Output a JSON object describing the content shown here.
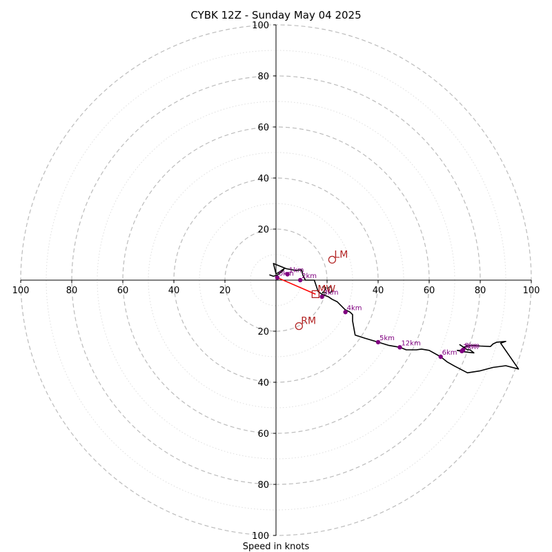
{
  "chart_data": {
    "type": "hodograph",
    "title": "CYBK 12Z - Sunday May 04 2025",
    "xlabel": "Speed in knots",
    "range": [
      -100,
      100
    ],
    "ring_labels": [
      "20",
      "40",
      "60",
      "80",
      "100"
    ],
    "tick_values": [
      20,
      40,
      60,
      80,
      100
    ],
    "colors": {
      "trace": "#000000",
      "height_markers": "#800080",
      "storm_motion": "#b22222",
      "shear_vector": "#ff0000",
      "rings_major": "#bbbbbb",
      "rings_minor": "#dddddd"
    },
    "trace": [
      [
        -2.6,
        2.1
      ],
      [
        -1.0,
        1.5
      ],
      [
        0.5,
        2.0
      ],
      [
        2.5,
        3.5
      ],
      [
        3.2,
        4.5
      ],
      [
        1.0,
        3.0
      ],
      [
        0.0,
        2.5
      ],
      [
        -1.0,
        6.5
      ],
      [
        4.0,
        4.5
      ],
      [
        7.5,
        3.8
      ],
      [
        10.0,
        4.0
      ],
      [
        10.5,
        2.0
      ],
      [
        11.5,
        0.0
      ],
      [
        13.5,
        0.0
      ],
      [
        15.0,
        0.0
      ],
      [
        16.5,
        -4.5
      ],
      [
        18.0,
        -5.5
      ],
      [
        20.5,
        -6.5
      ],
      [
        22.0,
        -7.5
      ],
      [
        24.0,
        -8.5
      ],
      [
        27.0,
        -11.5
      ],
      [
        29.0,
        -12.5
      ],
      [
        30.0,
        -13.5
      ],
      [
        30.0,
        -16.0
      ],
      [
        31.0,
        -21.5
      ],
      [
        35.0,
        -22.8
      ],
      [
        40.0,
        -24.3
      ],
      [
        44.0,
        -25.5
      ],
      [
        48.5,
        -26.3
      ],
      [
        51.0,
        -27.3
      ],
      [
        55.0,
        -27.3
      ],
      [
        57.0,
        -27.0
      ],
      [
        60.0,
        -27.5
      ],
      [
        64.5,
        -30.0
      ],
      [
        67.0,
        -32.0
      ],
      [
        70.0,
        -33.7
      ],
      [
        75.0,
        -36.3
      ],
      [
        80.0,
        -35.5
      ],
      [
        85.0,
        -34.2
      ],
      [
        90.0,
        -33.5
      ],
      [
        95.0,
        -34.8
      ],
      [
        88.0,
        -24.7
      ],
      [
        90.0,
        -24.0
      ],
      [
        86.5,
        -24.3
      ],
      [
        85.0,
        -25.0
      ],
      [
        84.0,
        -26.0
      ],
      [
        80.0,
        -25.8
      ],
      [
        76.5,
        -25.5
      ],
      [
        75.0,
        -25.8
      ],
      [
        73.5,
        -26.3
      ],
      [
        72.0,
        -25.3
      ],
      [
        75.0,
        -27.3
      ],
      [
        76.0,
        -27.3
      ],
      [
        77.5,
        -28.5
      ],
      [
        73.0,
        -28.0
      ],
      [
        71.0,
        -27.5
      ],
      [
        73.0,
        -27.5
      ]
    ],
    "height_markers": [
      {
        "label": "0km",
        "u": 0.5,
        "v": 1.0
      },
      {
        "label": "1km",
        "u": 4.5,
        "v": 2.3
      },
      {
        "label": "2km",
        "u": 9.5,
        "v": 0.0
      },
      {
        "label": "3km",
        "u": 18.0,
        "v": -6.5
      },
      {
        "label": "4km",
        "u": 27.2,
        "v": -12.5
      },
      {
        "label": "5km",
        "u": 40.0,
        "v": -24.3
      },
      {
        "label": "6km",
        "u": 64.5,
        "v": -30.0
      },
      {
        "label": "7km",
        "u": 72.8,
        "v": -27.8
      },
      {
        "label": "8km",
        "u": 73.3,
        "v": -27.3
      },
      {
        "label": "12km",
        "u": 48.5,
        "v": -26.3
      }
    ],
    "storm_motion": [
      {
        "label": "LM",
        "u": 22.0,
        "v": 8.0,
        "marker": "circle"
      },
      {
        "label": "RM",
        "u": 9.0,
        "v": -18.0,
        "marker": "circle"
      },
      {
        "label": "MW",
        "u": 15.5,
        "v": -5.5,
        "marker": "square"
      }
    ],
    "shear_vector": {
      "from": [
        0.5,
        1.0
      ],
      "to": [
        15.5,
        -5.5
      ]
    },
    "grid": true
  }
}
